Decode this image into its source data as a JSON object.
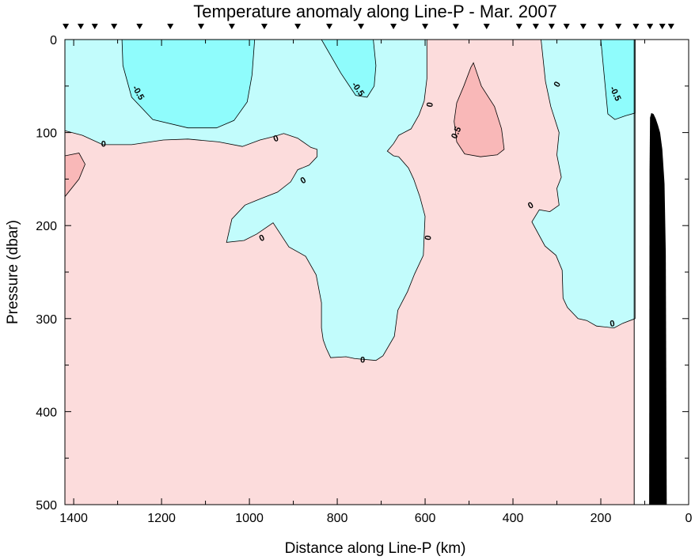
{
  "chart_data": {
    "type": "contour",
    "title": "Temperature anomaly along Line-P - Mar. 2007",
    "xlabel": "Distance along Line-P (km)",
    "ylabel": "Pressure (dbar)",
    "xlim": [
      1420,
      0
    ],
    "ylim": [
      0,
      500
    ],
    "x_reversed": true,
    "y_reversed": true,
    "x_ticks": [
      "1400",
      "1200",
      "1000",
      "800",
      "600",
      "400",
      "200",
      "0"
    ],
    "x_tick_values": [
      1400,
      1200,
      1000,
      800,
      600,
      400,
      200,
      0
    ],
    "y_ticks": [
      "0",
      "100",
      "200",
      "300",
      "400",
      "500"
    ],
    "y_tick_values": [
      0,
      100,
      200,
      300,
      400,
      500
    ],
    "station_km": [
      1418,
      1384,
      1352,
      1308,
      1250,
      1180,
      1110,
      1040,
      966,
      890,
      818,
      746,
      672,
      600,
      530,
      460,
      386,
      348,
      312,
      278,
      240,
      200,
      160,
      120,
      88,
      60,
      40
    ],
    "contour_levels": [
      -0.5,
      0,
      0.5
    ],
    "contour_labels": [
      "-0.5",
      "0",
      "0.5"
    ],
    "colors": {
      "positive": "#fcdcdc",
      "positive_strong": "#f9b8b8",
      "negative": "#c2fcfc",
      "negative_strong": "#8ffcfc",
      "bathymetry": "#000000",
      "no_data": "#ffffff"
    },
    "data_limit_km": 124,
    "bathymetry_profile": [
      [
        50,
        500
      ],
      [
        52,
        230
      ],
      [
        55,
        155
      ],
      [
        60,
        118
      ],
      [
        65,
        100
      ],
      [
        70,
        92
      ],
      [
        75,
        85
      ],
      [
        80,
        80
      ],
      [
        85,
        79
      ],
      [
        88,
        84
      ],
      [
        89,
        140
      ],
      [
        90,
        500
      ]
    ],
    "regions": [
      {
        "level": 0.5,
        "polygon": [
          [
            1420,
            125
          ],
          [
            1388,
            122
          ],
          [
            1374,
            134
          ],
          [
            1388,
            150
          ],
          [
            1420,
            169
          ]
        ]
      },
      {
        "level": -0.5,
        "polygon": [
          [
            1290,
            0
          ],
          [
            1288,
            28
          ],
          [
            1268,
            62
          ],
          [
            1220,
            86
          ],
          [
            1140,
            95
          ],
          [
            1075,
            95
          ],
          [
            1035,
            87
          ],
          [
            1005,
            67
          ],
          [
            994,
            38
          ],
          [
            988,
            0
          ]
        ]
      },
      {
        "level": -0.5,
        "polygon": [
          [
            836,
            0
          ],
          [
            792,
            36
          ],
          [
            758,
            60
          ],
          [
            732,
            62
          ],
          [
            716,
            50
          ],
          [
            712,
            28
          ],
          [
            718,
            0
          ]
        ]
      },
      {
        "level": 0.5,
        "polygon": [
          [
            490,
            25
          ],
          [
            472,
            50
          ],
          [
            442,
            72
          ],
          [
            426,
            96
          ],
          [
            420,
            118
          ],
          [
            436,
            124
          ],
          [
            474,
            126
          ],
          [
            510,
            123
          ],
          [
            528,
            110
          ],
          [
            534,
            88
          ],
          [
            528,
            68
          ],
          [
            512,
            50
          ],
          [
            496,
            30
          ]
        ]
      },
      {
        "level": -0.5,
        "polygon": [
          [
            200,
            0
          ],
          [
            184,
            80
          ],
          [
            168,
            86
          ],
          [
            144,
            82
          ],
          [
            122,
            79
          ],
          [
            122,
            0
          ]
        ]
      },
      {
        "level": 0,
        "polygon": [
          [
            1420,
            0
          ],
          [
            1420,
            98
          ],
          [
            1380,
            103
          ],
          [
            1334,
            113
          ],
          [
            1268,
            113
          ],
          [
            1196,
            108
          ],
          [
            1140,
            107
          ],
          [
            1070,
            110
          ],
          [
            1016,
            115
          ],
          [
            976,
            108
          ],
          [
            942,
            104
          ],
          [
            922,
            101
          ],
          [
            890,
            106
          ],
          [
            860,
            116
          ],
          [
            846,
            118
          ],
          [
            846,
            126
          ],
          [
            864,
            135
          ],
          [
            890,
            140
          ],
          [
            906,
            153
          ],
          [
            936,
            164
          ],
          [
            974,
            171
          ],
          [
            1010,
            178
          ],
          [
            1040,
            193
          ],
          [
            1052,
            218
          ],
          [
            1012,
            216
          ],
          [
            983,
            209
          ],
          [
            946,
            197
          ],
          [
            910,
            223
          ],
          [
            872,
            233
          ],
          [
            848,
            253
          ],
          [
            836,
            283
          ],
          [
            836,
            310
          ],
          [
            832,
            323
          ],
          [
            825,
            332
          ],
          [
            815,
            342
          ],
          [
            780,
            341
          ],
          [
            760,
            343
          ],
          [
            712,
            345
          ],
          [
            696,
            340
          ],
          [
            670,
            319
          ],
          [
            662,
            291
          ],
          [
            640,
            271
          ],
          [
            624,
            252
          ],
          [
            604,
            232
          ],
          [
            600,
            190
          ],
          [
            612,
            169
          ],
          [
            626,
            150
          ],
          [
            638,
            138
          ],
          [
            660,
            126
          ],
          [
            672,
            125
          ],
          [
            686,
            120
          ],
          [
            672,
            112
          ],
          [
            660,
            103
          ],
          [
            632,
            96
          ],
          [
            614,
            81
          ],
          [
            602,
            66
          ],
          [
            596,
            42
          ],
          [
            596,
            0
          ]
        ]
      },
      {
        "level": 0,
        "polygon": [
          [
            336,
            0
          ],
          [
            326,
            45
          ],
          [
            314,
            72
          ],
          [
            295,
            100
          ],
          [
            300,
            124
          ],
          [
            290,
            148
          ],
          [
            300,
            160
          ],
          [
            295,
            178
          ],
          [
            316,
            185
          ],
          [
            340,
            183
          ],
          [
            357,
            196
          ],
          [
            327,
            222
          ],
          [
            302,
            232
          ],
          [
            288,
            248
          ],
          [
            286,
            278
          ],
          [
            276,
            288
          ],
          [
            252,
            300
          ],
          [
            232,
            302
          ],
          [
            210,
            308
          ],
          [
            170,
            310
          ],
          [
            150,
            305
          ],
          [
            122,
            300
          ],
          [
            122,
            0
          ]
        ]
      }
    ],
    "contour_label_marks": [
      {
        "text": "-0.5",
        "x": 1252,
        "y": 57,
        "angle": 60
      },
      {
        "text": "-0.5",
        "x": 752,
        "y": 53,
        "angle": 55
      },
      {
        "text": "-0.5",
        "x": 166,
        "y": 58,
        "angle": 65
      },
      {
        "text": "0",
        "x": 1332,
        "y": 112,
        "angle": 0
      },
      {
        "text": "0",
        "x": 940,
        "y": 106,
        "angle": -20
      },
      {
        "text": "0",
        "x": 878,
        "y": 151,
        "angle": -30
      },
      {
        "text": "0",
        "x": 972,
        "y": 213,
        "angle": -25
      },
      {
        "text": "0",
        "x": 742,
        "y": 344,
        "angle": 0
      },
      {
        "text": "0",
        "x": 594,
        "y": 213,
        "angle": -80
      },
      {
        "text": "0",
        "x": 590,
        "y": 70,
        "angle": -80
      },
      {
        "text": "0",
        "x": 300,
        "y": 48,
        "angle": -60
      },
      {
        "text": "0",
        "x": 360,
        "y": 178,
        "angle": -30
      },
      {
        "text": "0",
        "x": 174,
        "y": 305,
        "angle": -10
      },
      {
        "text": "0.5",
        "x": 530,
        "y": 100,
        "angle": -65
      }
    ]
  }
}
